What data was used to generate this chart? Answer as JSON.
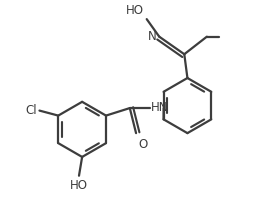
{
  "bg_color": "#ffffff",
  "line_color": "#3d3d3d",
  "line_width": 1.6,
  "font_size": 8.5,
  "fig_w": 2.77,
  "fig_h": 2.24,
  "dpi": 100,
  "xlim": [
    -1.6,
    2.8
  ],
  "ylim": [
    -1.6,
    1.7
  ]
}
